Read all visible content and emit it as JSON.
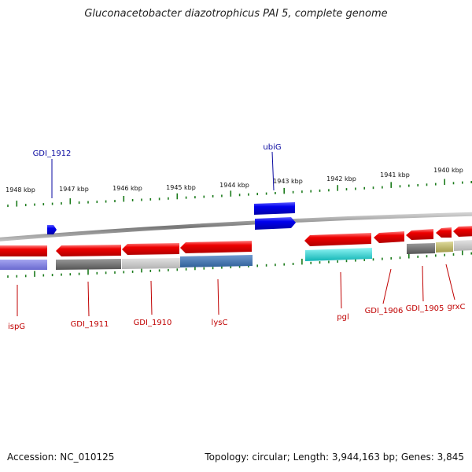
{
  "title": "Gluconacetobacter diazotrophicus PAI 5, complete genome",
  "footer": {
    "accession": "Accession: NC_010125",
    "topology": "Topology: circular; Length: 3,944,163 bp; Genes: 3,845"
  },
  "colors": {
    "forward": "#0000e6",
    "reverse": "#e60000",
    "axis_ticks": "#1a7a1a",
    "backbone": "#888888"
  },
  "scale": {
    "labels": [
      "1948 kbp",
      "1947 kbp",
      "1946 kbp",
      "1945 kbp",
      "1944 kbp",
      "1943 kbp",
      "1942 kbp",
      "1941 kbp",
      "1940 kbp"
    ]
  },
  "genes": [
    {
      "name": "GDI_1912",
      "strand": "forward"
    },
    {
      "name": "ubiG",
      "strand": "forward"
    },
    {
      "name": "ispG",
      "strand": "reverse"
    },
    {
      "name": "GDI_1911",
      "strand": "reverse"
    },
    {
      "name": "GDI_1910",
      "strand": "reverse"
    },
    {
      "name": "lysC",
      "strand": "reverse"
    },
    {
      "name": "pgl",
      "strand": "reverse"
    },
    {
      "name": "GDI_1906",
      "strand": "reverse"
    },
    {
      "name": "GDI_1905",
      "strand": "reverse"
    },
    {
      "name": "grxC",
      "strand": "reverse"
    }
  ]
}
